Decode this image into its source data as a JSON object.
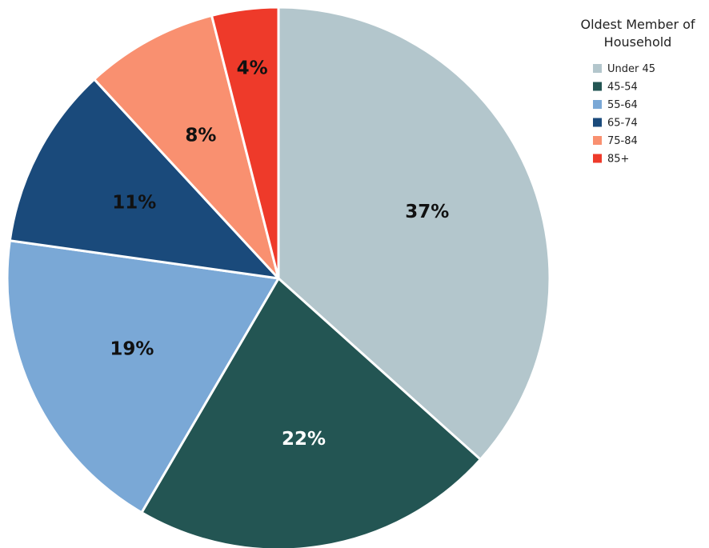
{
  "chart_data": {
    "type": "pie",
    "legend_title": [
      "Oldest Member of",
      "Household"
    ],
    "legend_position": "top-right",
    "slices": [
      {
        "label": "Under 45",
        "value": 37,
        "display": "37%",
        "color": "#b3c6cc",
        "label_color": "#111111"
      },
      {
        "label": "45-54",
        "value": 22,
        "display": "22%",
        "color": "#235553",
        "label_color": "#ffffff"
      },
      {
        "label": "55-64",
        "value": 19,
        "display": "19%",
        "color": "#7aa8d6",
        "label_color": "#111111"
      },
      {
        "label": "65-74",
        "value": 11,
        "display": "11%",
        "color": "#1a4a7b",
        "label_color": "#111111"
      },
      {
        "label": "75-84",
        "value": 8,
        "display": "8%",
        "color": "#f99070",
        "label_color": "#111111"
      },
      {
        "label": "85+",
        "value": 4,
        "display": "4%",
        "color": "#ee3a2a",
        "label_color": "#111111"
      }
    ]
  }
}
